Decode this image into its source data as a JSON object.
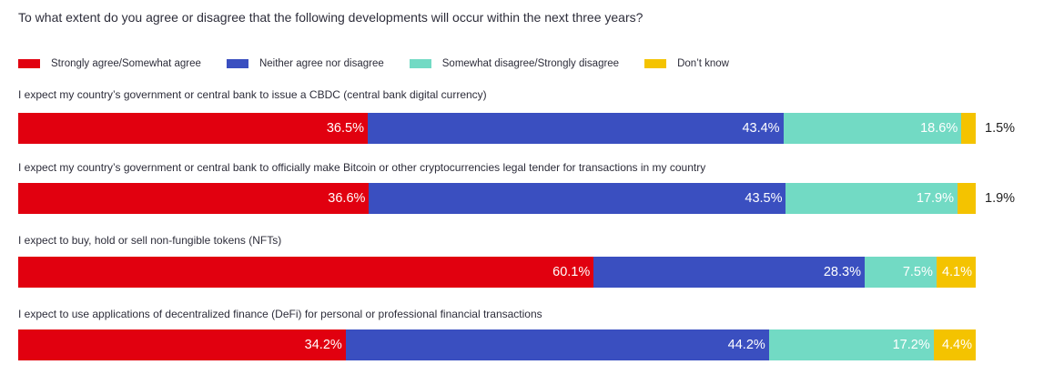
{
  "chart_data": {
    "type": "bar",
    "orientation": "horizontal",
    "stacked": true,
    "percent_stacked": true,
    "title": "To what extent do you agree or disagree that the following developments will occur within the next three years?",
    "legend_position": "top-left",
    "value_suffix": "%",
    "categories": [
      "I expect my country’s government or central bank to issue a CBDC (central bank digital currency)",
      "I expect my country’s government or central bank to officially make Bitcoin or other cryptocurrencies legal tender for transactions in my country",
      "I expect to buy, hold or sell non-fungible tokens (NFTs)",
      "I expect to use applications of decentralized finance (DeFi) for personal or professional financial transactions"
    ],
    "series": [
      {
        "name": "Strongly agree/Somewhat agree",
        "color": "#e1000f",
        "values": [
          36.5,
          36.6,
          60.1,
          34.2
        ]
      },
      {
        "name": "Neither agree nor disagree",
        "color": "#3a4fc0",
        "values": [
          43.4,
          43.5,
          28.3,
          44.2
        ]
      },
      {
        "name": "Somewhat disagree/Strongly disagree",
        "color": "#72dac4",
        "values": [
          18.6,
          17.9,
          7.5,
          17.2
        ]
      },
      {
        "name": "Don’t know",
        "color": "#f4c300",
        "values": [
          1.5,
          1.9,
          4.1,
          4.4
        ]
      }
    ],
    "data_labels": [
      [
        "36.5%",
        "43.4%",
        "18.6%",
        "1.5%"
      ],
      [
        "36.6%",
        "43.5%",
        "17.9%",
        "1.9%"
      ],
      [
        "60.1%",
        "28.3%",
        "7.5%",
        "4.1%"
      ],
      [
        "34.2%",
        "44.2%",
        "17.2%",
        "4.4%"
      ]
    ],
    "outside_label_rows": [
      0,
      1
    ]
  }
}
